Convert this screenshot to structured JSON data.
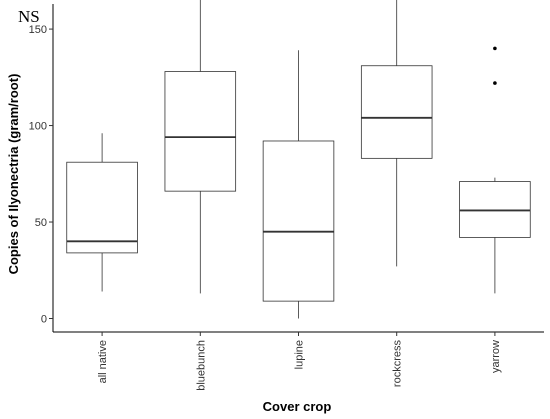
{
  "chart_data": {
    "type": "box",
    "annotation": "NS",
    "xlabel": "Cover crop",
    "ylabel": "Copies of Ilyonectria (gram/root)",
    "ylim": [
      -7,
      163
    ],
    "y_ticks": [
      0,
      50,
      100,
      150
    ],
    "grid": false,
    "categories": [
      "all native",
      "bluebunch",
      "lupine",
      "rockcress",
      "yarrow"
    ],
    "boxes": [
      {
        "category": "all native",
        "whisker_low": 14,
        "q1": 34,
        "median": 40,
        "q3": 81,
        "whisker_high": 96,
        "outliers": []
      },
      {
        "category": "bluebunch",
        "whisker_low": 13,
        "q1": 66,
        "median": 94,
        "q3": 128,
        "whisker_high": 168,
        "outliers": []
      },
      {
        "category": "lupine",
        "whisker_low": 0,
        "q1": 9,
        "median": 45,
        "q3": 92,
        "whisker_high": 139,
        "outliers": []
      },
      {
        "category": "rockcress",
        "whisker_low": 27,
        "q1": 83,
        "median": 104,
        "q3": 131,
        "whisker_high": 173,
        "outliers": []
      },
      {
        "category": "yarrow",
        "whisker_low": 13,
        "q1": 42,
        "median": 56,
        "q3": 71,
        "whisker_high": 73,
        "outliers": [
          122,
          140
        ]
      }
    ]
  }
}
